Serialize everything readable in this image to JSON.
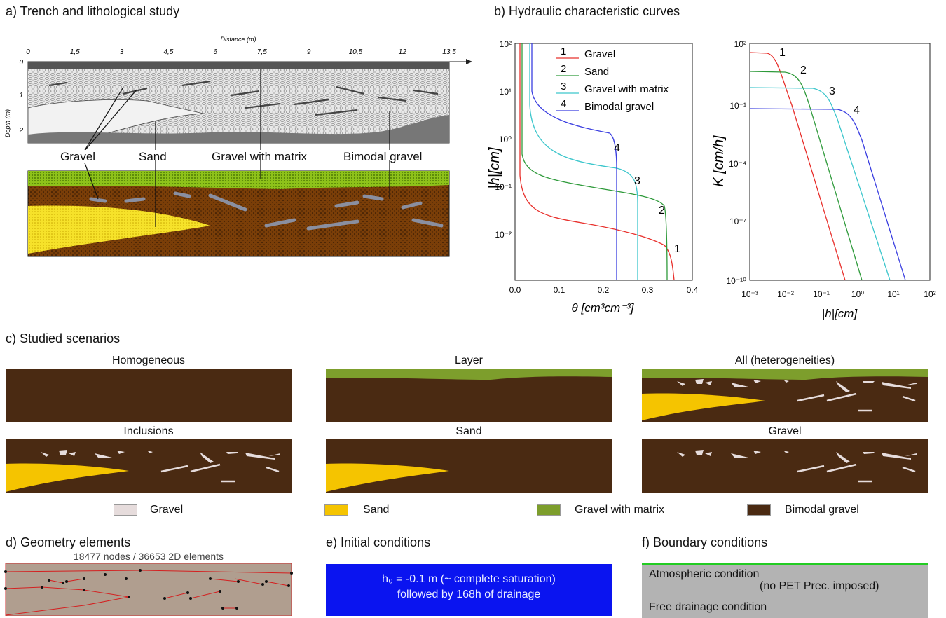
{
  "panels": {
    "a": {
      "title": "a) Trench and lithological study",
      "axis_x_label": "Distance (m)",
      "axis_y_label": "Depth (m)",
      "x_ticks": [
        "0",
        "1,5",
        "3",
        "4,5",
        "6",
        "7,5",
        "9",
        "10,5",
        "12",
        "13,5"
      ],
      "y_ticks": [
        "0",
        "1",
        "2"
      ],
      "labels": [
        "Gravel",
        "Sand",
        "Gravel with matrix",
        "Bimodal gravel"
      ]
    },
    "b": {
      "title": "b) Hydraulic characteristic curves",
      "left": {
        "ylabel": "|h|[cm]",
        "xlabel": "θ [cm³cm⁻³]",
        "y_ticks": [
          "10²",
          "10¹",
          "10⁰",
          "10⁻¹",
          "10⁻²"
        ],
        "x_ticks": [
          "0.0",
          "0.1",
          "0.2",
          "0.3",
          "0.4"
        ],
        "legend": [
          {
            "num": "1",
            "name": "Gravel",
            "color": "#e8302c"
          },
          {
            "num": "2",
            "name": "Sand",
            "color": "#2e9a3a"
          },
          {
            "num": "3",
            "name": "Gravel with matrix",
            "color": "#3cc6cc"
          },
          {
            "num": "4",
            "name": "Bimodal gravel",
            "color": "#3a3ee0"
          }
        ],
        "curve_labels": [
          "1",
          "2",
          "3",
          "4"
        ]
      },
      "right": {
        "ylabel": "K [cm/h]",
        "xlabel": "|h|[cm]",
        "y_ticks": [
          "10²",
          "10⁻¹",
          "10⁻⁴",
          "10⁻⁷",
          "10⁻¹⁰"
        ],
        "x_ticks": [
          "10⁻³",
          "10⁻²",
          "10⁻¹",
          "10⁰",
          "10¹",
          "10²"
        ],
        "curve_labels": [
          "1",
          "2",
          "3",
          "4"
        ]
      }
    },
    "c": {
      "title": "c) Studied scenarios",
      "scenarios": [
        "Homogeneous",
        "Layer",
        "All (heterogeneities)",
        "Inclusions",
        "Sand",
        "Gravel"
      ],
      "legend": [
        {
          "name": "Gravel",
          "color": "#e6dcdc"
        },
        {
          "name": "Sand",
          "color": "#f5c400"
        },
        {
          "name": "Gravel with matrix",
          "color": "#7d9e2c"
        },
        {
          "name": "Bimodal gravel",
          "color": "#4a2a12"
        }
      ]
    },
    "d": {
      "title": "d) Geometry elements",
      "mesh_info": "18477 nodes / 36653 2D elements"
    },
    "e": {
      "title": "e) Initial conditions",
      "line1": "h₀ = -0.1 m (~ complete saturation)",
      "line2": "followed by 168h of drainage",
      "color": "#0a14f0"
    },
    "f": {
      "title": "f) Boundary conditions",
      "top_label": "Atmospheric condition",
      "top_sub": "(no PET Prec. imposed)",
      "bottom_label": "Free drainage condition"
    }
  }
}
